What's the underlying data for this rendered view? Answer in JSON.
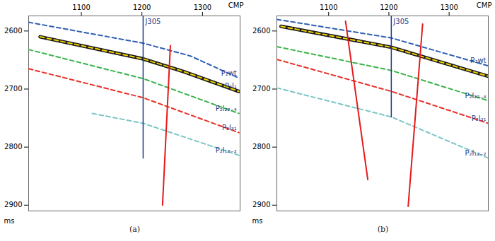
{
  "chart_data": [
    {
      "type": "line",
      "subtitle": "(a)",
      "x_label": "CMP",
      "y_label": "ms",
      "xlim": [
        1013,
        1362
      ],
      "ylim": [
        2574,
        2910
      ],
      "xticks": [
        1100,
        1200,
        1300
      ],
      "yticks": [
        2600,
        2700,
        2800,
        2900
      ],
      "series": [
        {
          "type": "horizon",
          "name": "P₂wt",
          "color": "#2f5fb3",
          "line_style": "dashed",
          "x": [
            1013,
            1202,
            1280,
            1360
          ],
          "values": [
            2585,
            2621,
            2643,
            2681
          ]
        },
        {
          "type": "horizon",
          "name": "P₂l₁",
          "color": "#f2d400",
          "line_style": "dashed",
          "x": [
            1032,
            1202,
            1269,
            1360
          ],
          "values": [
            2610,
            2648,
            2670,
            2704
          ]
        },
        {
          "type": "horizon",
          "name": "P₂l₂₂₋₄",
          "color": "#3cb44b",
          "line_style": "dashed",
          "x": [
            1013,
            1202,
            1360
          ],
          "values": [
            2632,
            2682,
            2742
          ]
        },
        {
          "type": "horizon",
          "name": "P₂l₃₁",
          "color": "#e8312a",
          "line_style": "dashed",
          "x": [
            1013,
            1202,
            1360
          ],
          "values": [
            2665,
            2715,
            2775
          ]
        },
        {
          "type": "horizon",
          "name": "P₂l₁₂₋₂",
          "color": "#7cc6c6",
          "line_style": "dashed",
          "x": [
            1118,
            1202,
            1360
          ],
          "values": [
            2742,
            2759,
            2814
          ]
        },
        {
          "type": "fault",
          "color": "#e41a1c",
          "line_style": "solid",
          "x": [
            1247,
            1234
          ],
          "values": [
            2625,
            2900
          ]
        },
        {
          "type": "well",
          "name": "J305",
          "color": "#1f3a8a",
          "line_style": "solid",
          "x": [
            1202,
            1202
          ],
          "values": [
            2574,
            2819
          ]
        }
      ]
    },
    {
      "type": "line",
      "subtitle": "(b)",
      "x_label": "CMP",
      "y_label": "ms",
      "xlim": [
        1014,
        1365
      ],
      "ylim": [
        2574,
        2910
      ],
      "xticks": [
        1100,
        1200,
        1300
      ],
      "yticks": [
        2600,
        2700,
        2800,
        2900
      ],
      "series": [
        {
          "type": "horizon",
          "name": "P₂wt",
          "color": "#2f5fb3",
          "line_style": "dashed",
          "x": [
            1014,
            1204,
            1365
          ],
          "values": [
            2580,
            2612,
            2660
          ]
        },
        {
          "type": "horizon",
          "color": "#f2d400",
          "line_style": "dashed",
          "x": [
            1021,
            1204,
            1365
          ],
          "values": [
            2592,
            2628,
            2678
          ]
        },
        {
          "type": "horizon",
          "name": "P₂l₂₂₋₄",
          "color": "#3cb44b",
          "line_style": "dashed",
          "x": [
            1014,
            1204,
            1365
          ],
          "values": [
            2627,
            2668,
            2720
          ]
        },
        {
          "type": "horizon",
          "name": "P₂l₃₁",
          "color": "#e8312a",
          "line_style": "dashed",
          "x": [
            1014,
            1204,
            1365
          ],
          "values": [
            2649,
            2704,
            2759
          ]
        },
        {
          "type": "horizon",
          "name": "P₂l₁₂₋₂",
          "color": "#7cc6c6",
          "line_style": "dashed",
          "x": [
            1014,
            1204,
            1365
          ],
          "values": [
            2698,
            2748,
            2819
          ]
        },
        {
          "type": "fault",
          "color": "#e41a1c",
          "line_style": "solid",
          "x": [
            1128,
            1165
          ],
          "values": [
            2583,
            2856
          ]
        },
        {
          "type": "fault",
          "color": "#e41a1c",
          "line_style": "solid",
          "x": [
            1256,
            1232
          ],
          "values": [
            2588,
            2902
          ]
        },
        {
          "type": "well",
          "name": "J305",
          "color": "#1f3a8a",
          "line_style": "solid",
          "x": [
            1204,
            1204
          ],
          "values": [
            2574,
            2748
          ]
        }
      ]
    }
  ]
}
